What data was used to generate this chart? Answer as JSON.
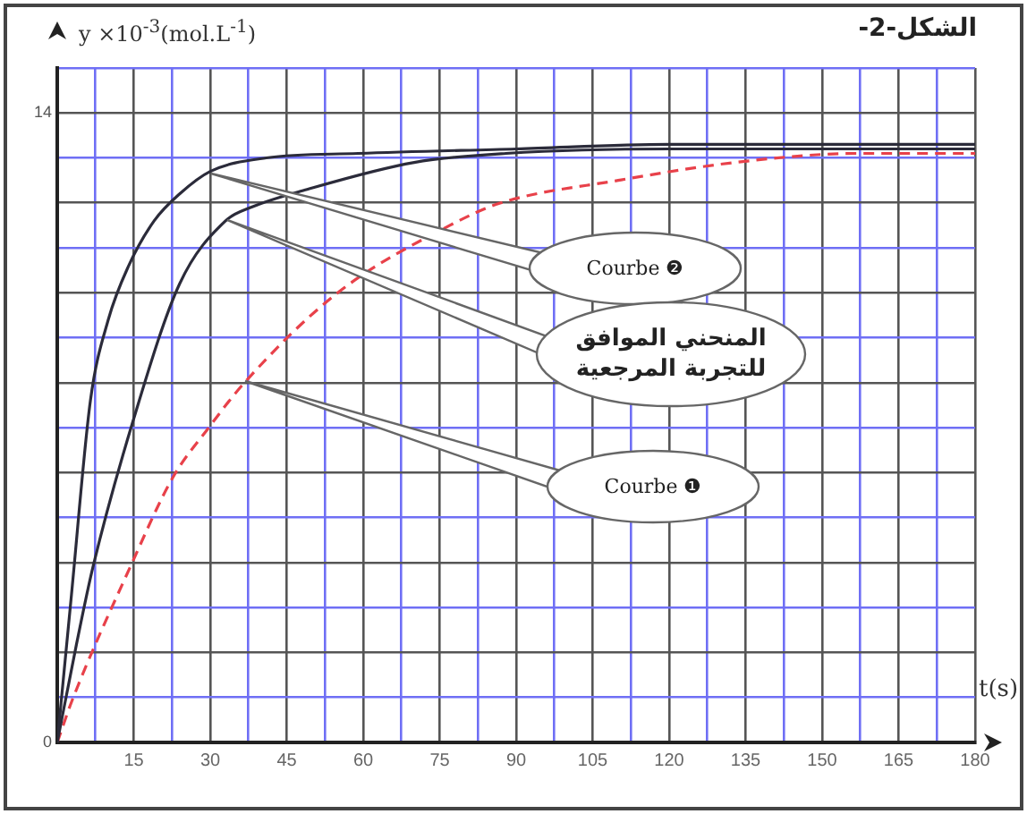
{
  "chart_data": {
    "type": "line",
    "title": "الشكل-2-",
    "xlabel": "t(s)",
    "ylabel": "y ×10$^{-3}$(mol.L$^{-1}$)",
    "xlim": [
      0,
      180
    ],
    "ylim": [
      0,
      15
    ],
    "xticks": [
      {
        "value": 0,
        "label": null
      },
      {
        "value": 7.5,
        "label": null
      },
      15,
      {
        "value": 22.5,
        "label": null
      },
      30,
      {
        "value": 37.5,
        "label": null
      },
      45,
      {
        "value": 52.5,
        "label": null
      },
      60,
      {
        "value": 67.5,
        "label": null
      },
      75,
      {
        "value": 82.5,
        "label": null
      },
      90,
      {
        "value": 97.5,
        "label": null
      },
      105,
      {
        "value": 112.5,
        "label": null
      },
      120,
      {
        "value": 127.5,
        "label": null
      },
      135,
      {
        "value": 142.5,
        "label": null
      },
      150,
      {
        "value": 157.5,
        "label": null
      },
      165,
      {
        "value": 172.5,
        "label": null
      },
      180
    ],
    "yticks": [
      0,
      {
        "value": 1,
        "label": null
      },
      {
        "value": 2,
        "label": null
      },
      {
        "value": 3,
        "label": null
      },
      {
        "value": 4,
        "label": null
      },
      {
        "value": 5,
        "label": null
      },
      {
        "value": 6,
        "label": null
      },
      {
        "value": 7,
        "label": null
      },
      {
        "value": 8,
        "label": null
      },
      {
        "value": 9,
        "label": null
      },
      {
        "value": 10,
        "label": null
      },
      {
        "value": 11,
        "label": null
      },
      {
        "value": 12,
        "label": null
      },
      {
        "value": 13,
        "label": null
      },
      14,
      {
        "value": 15,
        "label": null
      }
    ],
    "grid": true,
    "legend": false,
    "marker": "none",
    "series": [
      {
        "color": "#2b2b3a",
        "line_style": "solid",
        "x": [
          0,
          2.8,
          6.5,
          10,
          14,
          19,
          24,
          30,
          41,
          59,
          90,
          120,
          180
        ],
        "values": [
          0,
          3.3,
          7.6,
          9.4,
          10.6,
          11.6,
          12.2,
          12.7,
          13.0,
          13.1,
          13.2,
          13.3,
          13.3
        ]
      },
      {
        "color": "#2b2b3a",
        "line_style": "solid",
        "x": [
          0,
          3.8,
          7,
          15,
          24,
          33,
          38,
          49,
          70,
          88,
          120,
          180
        ],
        "values": [
          0,
          2.2,
          3.9,
          7.2,
          10.2,
          11.6,
          11.9,
          12.3,
          12.9,
          13.1,
          13.2,
          13.2
        ]
      },
      {
        "color": "#e8414a",
        "line_style": "dashed",
        "x": [
          0,
          2.8,
          14.3,
          22.7,
          29.7,
          36.7,
          55,
          77,
          87,
          110,
          133,
          157,
          180
        ],
        "values": [
          0,
          0.9,
          3.9,
          5.9,
          7.0,
          8.0,
          10.0,
          11.5,
          12.0,
          12.5,
          12.9,
          13.1,
          13.1
        ]
      }
    ],
    "annotations": [
      "Courbe ❷",
      "المنحني الموافق للتجربة المرجعية",
      "Courbe ❶"
    ]
  }
}
